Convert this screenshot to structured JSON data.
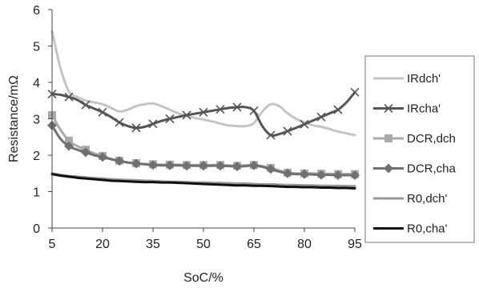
{
  "chart_data": {
    "type": "line",
    "xlabel": "SoC/%",
    "ylabel": "Resistance/mΩ",
    "xlim": [
      5,
      95
    ],
    "ylim": [
      0,
      6
    ],
    "xticks": [
      5,
      20,
      35,
      50,
      65,
      80,
      95
    ],
    "yticks": [
      0,
      1,
      2,
      3,
      4,
      5,
      6
    ],
    "grid": false,
    "legend": "right",
    "series": [
      {
        "name": "IRdch'",
        "color": "#c4c4c4",
        "marker": "none",
        "x": [
          5,
          7.5,
          10,
          12.5,
          15,
          17.5,
          20,
          22.5,
          25,
          27.5,
          30,
          32.5,
          35,
          37.5,
          40,
          42.5,
          45,
          47.5,
          50,
          52.5,
          55,
          57.5,
          60,
          62.5,
          65,
          67.5,
          70,
          72.5,
          75,
          77.5,
          80,
          82.5,
          85,
          87.5,
          90,
          92.5,
          95
        ],
        "y": [
          5.4,
          4.4,
          3.75,
          3.6,
          3.5,
          3.45,
          3.4,
          3.3,
          3.2,
          3.25,
          3.35,
          3.4,
          3.42,
          3.35,
          3.25,
          3.15,
          3.08,
          3.02,
          2.98,
          2.93,
          2.87,
          2.82,
          2.8,
          2.8,
          2.88,
          3.2,
          3.4,
          3.35,
          3.15,
          3.0,
          2.9,
          2.82,
          2.78,
          2.72,
          2.65,
          2.6,
          2.55
        ]
      },
      {
        "name": "IRcha'",
        "color": "#555555",
        "marker": "x",
        "x": [
          5,
          7.5,
          10,
          12.5,
          15,
          17.5,
          20,
          22.5,
          25,
          27.5,
          30,
          32.5,
          35,
          37.5,
          40,
          42.5,
          45,
          47.5,
          50,
          52.5,
          55,
          57.5,
          60,
          62.5,
          65,
          67.5,
          70,
          72.5,
          75,
          77.5,
          80,
          82.5,
          85,
          87.5,
          90,
          92.5,
          95
        ],
        "y": [
          3.68,
          3.66,
          3.6,
          3.52,
          3.38,
          3.28,
          3.18,
          3.05,
          2.9,
          2.8,
          2.75,
          2.78,
          2.86,
          2.94,
          3.0,
          3.05,
          3.1,
          3.14,
          3.18,
          3.22,
          3.26,
          3.3,
          3.32,
          3.32,
          3.22,
          2.8,
          2.55,
          2.58,
          2.66,
          2.75,
          2.85,
          2.95,
          3.05,
          3.15,
          3.25,
          3.45,
          3.73
        ]
      },
      {
        "name": "DCR,dch",
        "color": "#aaaaaa",
        "marker": "square",
        "x": [
          5,
          7.5,
          10,
          12.5,
          15,
          17.5,
          20,
          22.5,
          25,
          27.5,
          30,
          32.5,
          35,
          37.5,
          40,
          42.5,
          45,
          47.5,
          50,
          52.5,
          55,
          57.5,
          60,
          62.5,
          65,
          67.5,
          70,
          72.5,
          75,
          77.5,
          80,
          82.5,
          85,
          87.5,
          90,
          92.5,
          95
        ],
        "y": [
          3.1,
          2.7,
          2.4,
          2.25,
          2.15,
          2.05,
          1.98,
          1.9,
          1.85,
          1.8,
          1.78,
          1.76,
          1.75,
          1.74,
          1.74,
          1.74,
          1.73,
          1.73,
          1.73,
          1.73,
          1.73,
          1.72,
          1.71,
          1.72,
          1.73,
          1.7,
          1.65,
          1.58,
          1.52,
          1.5,
          1.5,
          1.5,
          1.49,
          1.49,
          1.48,
          1.48,
          1.48
        ]
      },
      {
        "name": "DCR,cha",
        "color": "#707070",
        "marker": "diamond",
        "x": [
          5,
          7.5,
          10,
          12.5,
          15,
          17.5,
          20,
          22.5,
          25,
          27.5,
          30,
          32.5,
          35,
          37.5,
          40,
          42.5,
          45,
          47.5,
          50,
          52.5,
          55,
          57.5,
          60,
          62.5,
          65,
          67.5,
          70,
          72.5,
          75,
          77.5,
          80,
          82.5,
          85,
          87.5,
          90,
          92.5,
          95
        ],
        "y": [
          2.82,
          2.45,
          2.25,
          2.15,
          2.08,
          2.0,
          1.95,
          1.89,
          1.84,
          1.8,
          1.77,
          1.75,
          1.73,
          1.72,
          1.72,
          1.72,
          1.71,
          1.71,
          1.71,
          1.71,
          1.71,
          1.7,
          1.69,
          1.7,
          1.72,
          1.68,
          1.62,
          1.55,
          1.5,
          1.48,
          1.48,
          1.47,
          1.46,
          1.46,
          1.45,
          1.45,
          1.45
        ]
      },
      {
        "name": "R0,dch'",
        "color": "#999999",
        "marker": "none",
        "x": [
          5,
          7.5,
          10,
          12.5,
          15,
          17.5,
          20,
          22.5,
          25,
          27.5,
          30,
          32.5,
          35,
          37.5,
          40,
          42.5,
          45,
          47.5,
          50,
          52.5,
          55,
          57.5,
          60,
          62.5,
          65,
          67.5,
          70,
          72.5,
          75,
          77.5,
          80,
          82.5,
          85,
          87.5,
          90,
          92.5,
          95
        ],
        "y": [
          1.5,
          1.46,
          1.43,
          1.41,
          1.39,
          1.37,
          1.36,
          1.34,
          1.33,
          1.32,
          1.31,
          1.3,
          1.29,
          1.28,
          1.27,
          1.27,
          1.26,
          1.25,
          1.25,
          1.24,
          1.24,
          1.23,
          1.22,
          1.22,
          1.21,
          1.2,
          1.2,
          1.19,
          1.18,
          1.18,
          1.17,
          1.17,
          1.16,
          1.16,
          1.16,
          1.15,
          1.15
        ]
      },
      {
        "name": "R0,cha'",
        "color": "#111111",
        "marker": "none",
        "x": [
          5,
          7.5,
          10,
          12.5,
          15,
          17.5,
          20,
          22.5,
          25,
          27.5,
          30,
          32.5,
          35,
          37.5,
          40,
          42.5,
          45,
          47.5,
          50,
          52.5,
          55,
          57.5,
          60,
          62.5,
          65,
          67.5,
          70,
          72.5,
          75,
          77.5,
          80,
          82.5,
          85,
          87.5,
          90,
          92.5,
          95
        ],
        "y": [
          1.48,
          1.44,
          1.41,
          1.38,
          1.36,
          1.34,
          1.32,
          1.3,
          1.29,
          1.28,
          1.27,
          1.26,
          1.26,
          1.25,
          1.25,
          1.24,
          1.23,
          1.22,
          1.21,
          1.2,
          1.19,
          1.18,
          1.17,
          1.17,
          1.16,
          1.16,
          1.15,
          1.14,
          1.13,
          1.13,
          1.12,
          1.12,
          1.11,
          1.11,
          1.1,
          1.1,
          1.09
        ]
      }
    ]
  }
}
